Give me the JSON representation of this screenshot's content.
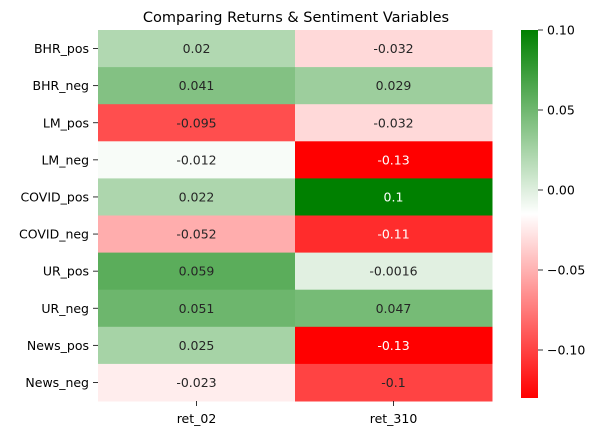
{
  "chart_data": {
    "type": "heatmap",
    "title": "Comparing Returns & Sentiment Variables",
    "rows": [
      "BHR_pos",
      "BHR_neg",
      "LM_pos",
      "LM_neg",
      "COVID_pos",
      "COVID_neg",
      "UR_pos",
      "UR_neg",
      "News_pos",
      "News_neg"
    ],
    "columns": [
      "ret_02",
      "ret_310"
    ],
    "values": [
      [
        0.02,
        -0.032
      ],
      [
        0.041,
        0.029
      ],
      [
        -0.095,
        -0.032
      ],
      [
        -0.012,
        -0.13
      ],
      [
        0.022,
        0.1
      ],
      [
        -0.052,
        -0.11
      ],
      [
        0.059,
        -0.0016
      ],
      [
        0.051,
        0.047
      ],
      [
        0.025,
        -0.13
      ],
      [
        -0.023,
        -0.1
      ]
    ],
    "value_labels": [
      [
        "0.02",
        "-0.032"
      ],
      [
        "0.041",
        "0.029"
      ],
      [
        "-0.095",
        "-0.032"
      ],
      [
        "-0.012",
        "-0.13"
      ],
      [
        "0.022",
        "0.1"
      ],
      [
        "-0.052",
        "-0.11"
      ],
      [
        "0.059",
        "-0.0016"
      ],
      [
        "0.051",
        "0.047"
      ],
      [
        "0.025",
        "-0.13"
      ],
      [
        "-0.023",
        "-0.1"
      ]
    ],
    "colorbar": {
      "range": [
        -0.13,
        0.1
      ],
      "ticks": [
        0.1,
        0.05,
        0.0,
        -0.05,
        -0.1
      ],
      "tick_labels": [
        "0.10",
        "0.05",
        "0.00",
        "−0.05",
        "−0.10"
      ],
      "colors": [
        "#ff0000",
        "#ffffff",
        "#008000"
      ]
    },
    "xlabel": "",
    "ylabel": ""
  }
}
